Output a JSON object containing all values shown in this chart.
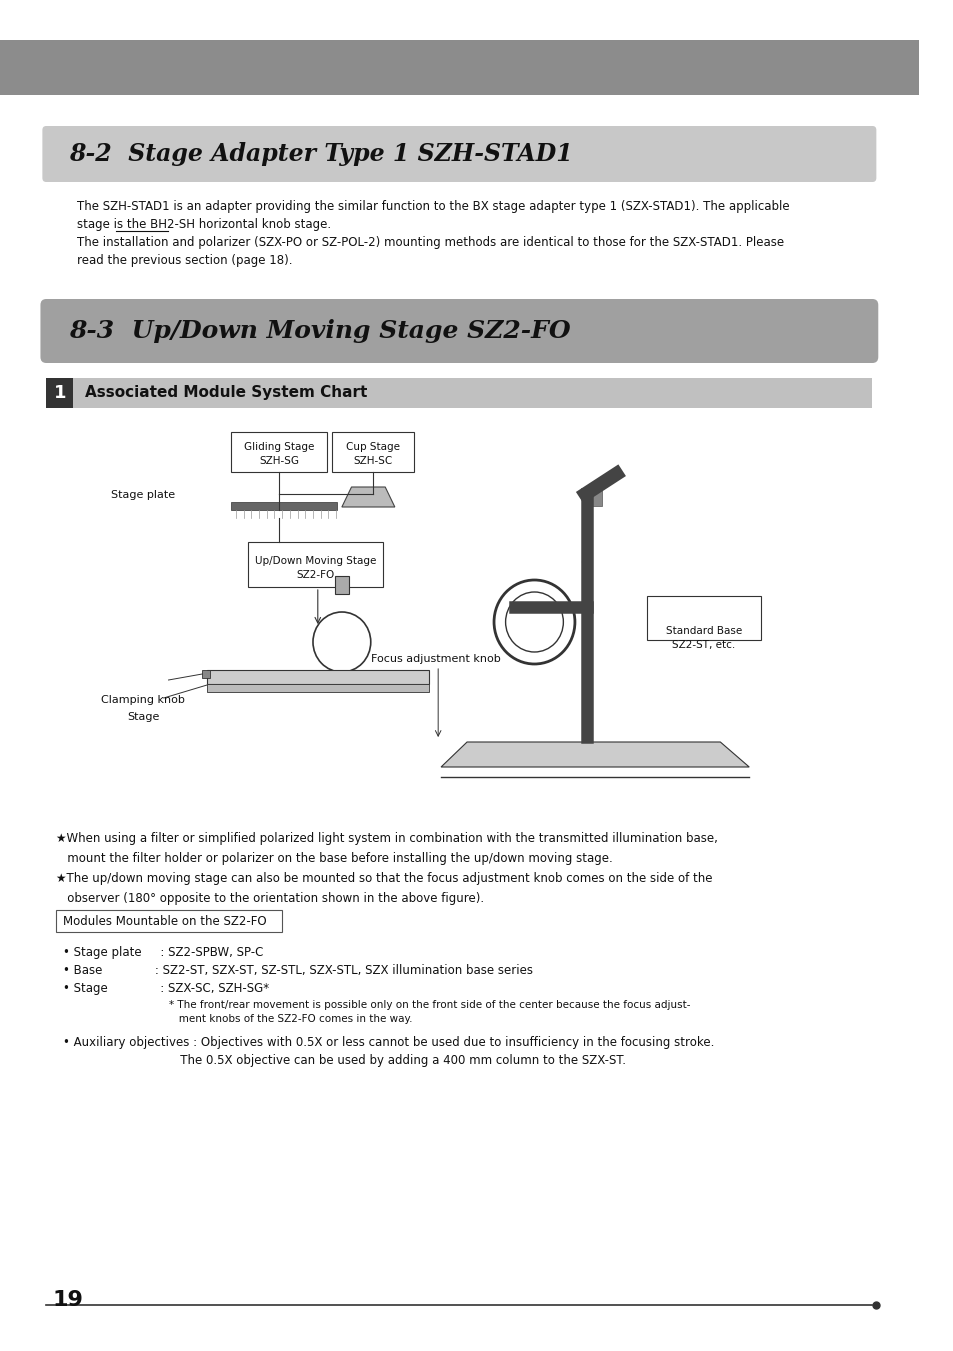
{
  "page_number": "19",
  "background_color": "#ffffff",
  "top_bar_color": "#8c8c8c",
  "section1_title": "8-2  Stage Adapter Type 1 SZH-STAD1",
  "section1_bg": "#c8c8c8",
  "section1_body": [
    "The SZH-STAD1 is an adapter providing the similar function to the BX stage adapter type 1 (SZX-STAD1). The applicable",
    "stage is the BH2-SH horizontal knob stage.",
    "The installation and polarizer (SZX-PO or SZ-POL-2) mounting methods are identical to those for the SZX-STAD1. Please",
    "read the previous section (page 18)."
  ],
  "section2_title": "8-3  Up/Down Moving Stage SZ2-FO",
  "section2_bg": "#a0a0a0",
  "subsection_num": "1",
  "subsection_title": "Associated Module System Chart",
  "subsection_bg": "#c0c0c0",
  "notes": [
    "★When using a filter or simplified polarized light system in combination with the transmitted illumination base,",
    "   mount the filter holder or polarizer on the base before installing the up/down moving stage.",
    "★The up/down moving stage can also be mounted so that the focus adjustment knob comes on the side of the",
    "   observer (180° opposite to the orientation shown in the above figure)."
  ],
  "modules_box_title": "Modules Mountable on the SZ2-FO",
  "modules_lines": [
    "• Stage plate     : SZ2-SPBW, SP-C",
    "• Base              : SZ2-ST, SZX-ST, SZ-STL, SZX-STL, SZX illumination base series",
    "• Stage              : SZX-SC, SZH-SG*"
  ],
  "footnote1": "* The front/rear movement is possible only on the front side of the center because the focus adjust-",
  "footnote2": "   ment knobs of the SZ2-FO comes in the way.",
  "aux_line": "• Auxiliary objectives : Objectives with 0.5X or less cannot be used due to insufficiency in the focusing stroke.",
  "aux_line2": "   The 0.5X objective can be used by adding a 400 mm column to the SZX-ST."
}
